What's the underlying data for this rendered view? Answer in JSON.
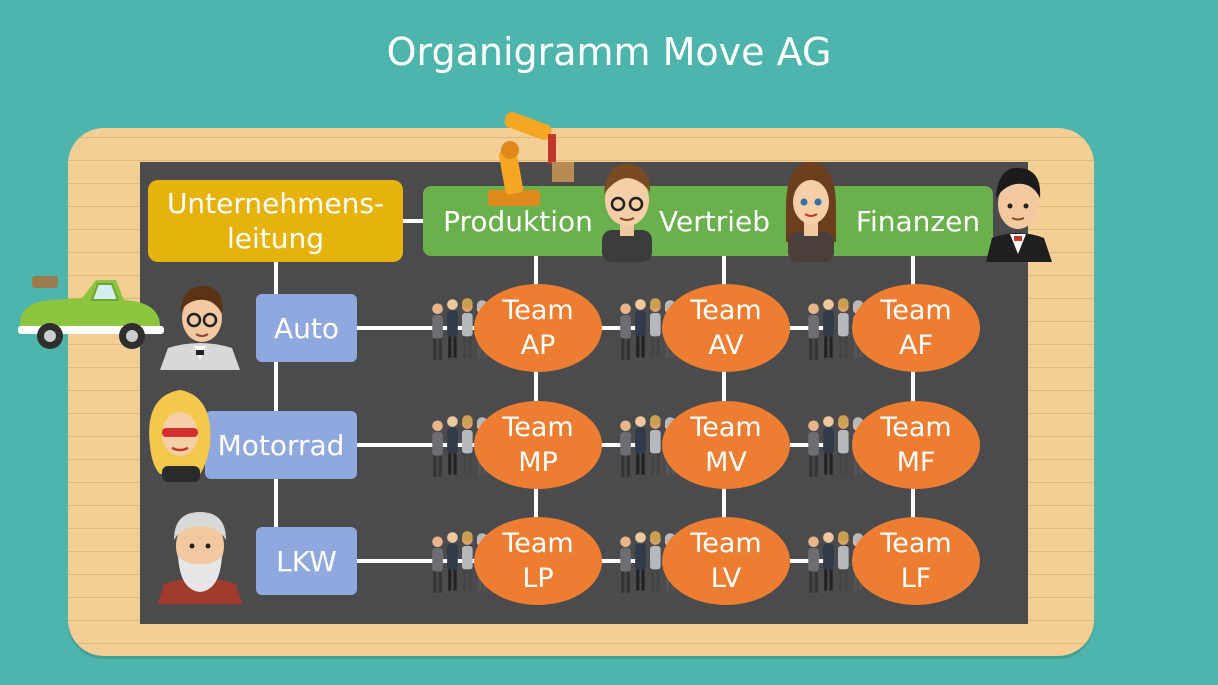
{
  "title": "Organigramm Move AG",
  "management": {
    "line1": "Unternehmens-",
    "line2": "leitung"
  },
  "departments": [
    {
      "label": "Produktion"
    },
    {
      "label": "Vertrieb"
    },
    {
      "label": "Finanzen"
    }
  ],
  "products": [
    {
      "label": "Auto"
    },
    {
      "label": "Motorrad"
    },
    {
      "label": "LKW"
    }
  ],
  "teams": [
    {
      "line1": "Team",
      "line2": "AP"
    },
    {
      "line1": "Team",
      "line2": "AV"
    },
    {
      "line1": "Team",
      "line2": "AF"
    },
    {
      "line1": "Team",
      "line2": "MP"
    },
    {
      "line1": "Team",
      "line2": "MV"
    },
    {
      "line1": "Team",
      "line2": "MF"
    },
    {
      "line1": "Team",
      "line2": "LP"
    },
    {
      "line1": "Team",
      "line2": "LV"
    },
    {
      "line1": "Team",
      "line2": "LF"
    }
  ],
  "icons": {
    "car": "car-icon",
    "robot_arm": "robot-arm-icon",
    "person": "person-icon",
    "group": "people-group-icon"
  },
  "colors": {
    "background": "#4db5ab",
    "board": "#f4cf95",
    "chalkboard": "#4b4b4d",
    "management": "#e6b20c",
    "departments": "#6ab04c",
    "products": "#8fa9df",
    "teams": "#ed7d31"
  }
}
